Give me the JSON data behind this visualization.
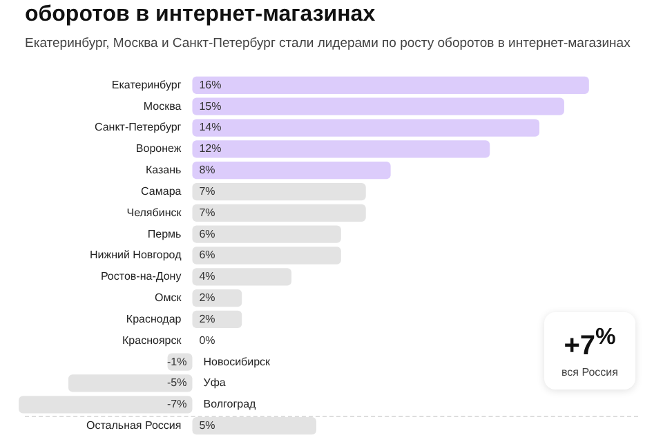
{
  "chart_data": {
    "type": "bar",
    "orientation": "horizontal",
    "title": "оборотов в интернет-магазинах",
    "subtitle": "Екатеринбург, Москва и Санкт-Петербург стали лидерами по росту оборотов в интернет-магазинах",
    "categories": [
      "Екатеринбург",
      "Москва",
      "Санкт-Петербург",
      "Воронеж",
      "Казань",
      "Самара",
      "Челябинск",
      "Пермь",
      "Нижний Новгород",
      "Ростов-на-Дону",
      "Омск",
      "Краснодар",
      "Красноярск",
      "Новосибирск",
      "Уфа",
      "Волгоград",
      "Остальная Россия"
    ],
    "values": [
      16,
      15,
      14,
      12,
      8,
      7,
      7,
      6,
      6,
      4,
      2,
      2,
      0,
      -1,
      -5,
      -7,
      5
    ],
    "value_labels": [
      "16%",
      "15%",
      "14%",
      "12%",
      "8%",
      "7%",
      "7%",
      "6%",
      "6%",
      "4%",
      "2%",
      "2%",
      "0%",
      "-1%",
      "-5%",
      "-7%",
      "5%"
    ],
    "colors": [
      "#dcccfb",
      "#dcccfb",
      "#dcccfb",
      "#dcccfb",
      "#dcccfb",
      "#e3e3e3",
      "#e3e3e3",
      "#e3e3e3",
      "#e3e3e3",
      "#e3e3e3",
      "#e3e3e3",
      "#e3e3e3",
      "#e3e3e3",
      "#e3e3e3",
      "#e3e3e3",
      "#e3e3e3",
      "#e3e3e3"
    ],
    "xlim": [
      -7.2,
      16.2
    ],
    "tick_labels": "y",
    "legend": false,
    "annotations": [
      "+7$^{%}$",
      "вся Россия"
    ]
  }
}
